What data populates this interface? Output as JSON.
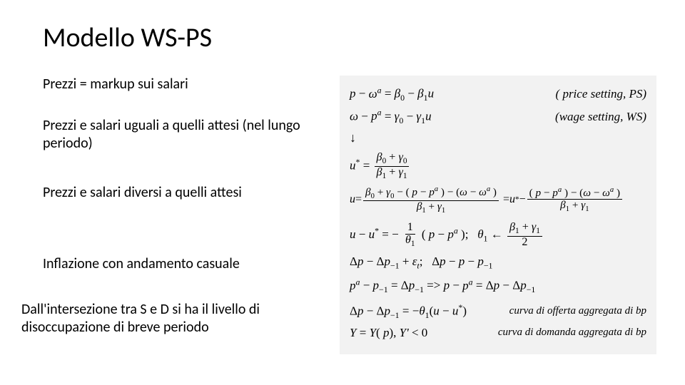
{
  "title": "Modello WS-PS",
  "left_paras": [
    "Prezzi = markup sui salari",
    "Prezzi e salari uguali a quelli attesi (nel lungo periodo)",
    "Prezzi e salari diversi a quelli attesi",
    "Inflazione con andamento casuale",
    "Dall'intersezione tra S e D si ha il livello di disoccupazione di breve periodo"
  ],
  "left_para_tops": [
    "0px",
    "58px",
    "152px",
    "252px",
    "316px"
  ],
  "panel_bg": "#f2f2f2",
  "greek": {
    "omega": "ω",
    "beta": "β",
    "gamma": "γ",
    "theta": "θ",
    "Delta": "Δ",
    "eps": "ε",
    "arrow_down": "↓"
  },
  "labels": {
    "ps": "( price setting, PS)",
    "ws": "(wage setting, WS)",
    "as": "curva di offerta aggregata di bp",
    "ad": "curva di domanda aggregata di bp"
  },
  "txt": {
    "p_minus_wa": "p − ",
    "eq_b0_b1u": " = β",
    "zero": "0",
    " − β": " − β",
    "one": "1",
    "u": "u",
    "w_minus_pa": " − p",
    "eq_g0_g1u": " = γ",
    "ustar_eq": "u* = ",
    "u_eq": "u = ",
    "num1": "β₀ + γ₀",
    "den1": "β₁ + γ₁",
    "wide_num": "β₀ + γ₀ − ( p − pᵃ ) − (ω − ωᵃ )",
    "wide_rhs": " = u* − ",
    "wide_num2": "( p − pᵃ ) − (ω − ωᵃ )",
    "uu_line": "u − u* = − ",
    "theta_frac_num": "1",
    "theta_def": "( p − pᵃ );   θ₁ ← ",
    "theta_rhs_num": "β₁ + γ₁",
    "theta_rhs_den": "2",
    "dp_line": "Δp − Δp₋₁ + ε",
    "dp_t": ";   Δp − p − p₋₁",
    "pa_line": "pᵃ − p₋₁ = Δp₋₁ => p − pᵃ = Δp − Δp₋₁",
    "as_line": "Δp − Δp₋₁ = −θ₁(u − u*)",
    "ad_line": "Y = Y( p), Y' < 0"
  }
}
